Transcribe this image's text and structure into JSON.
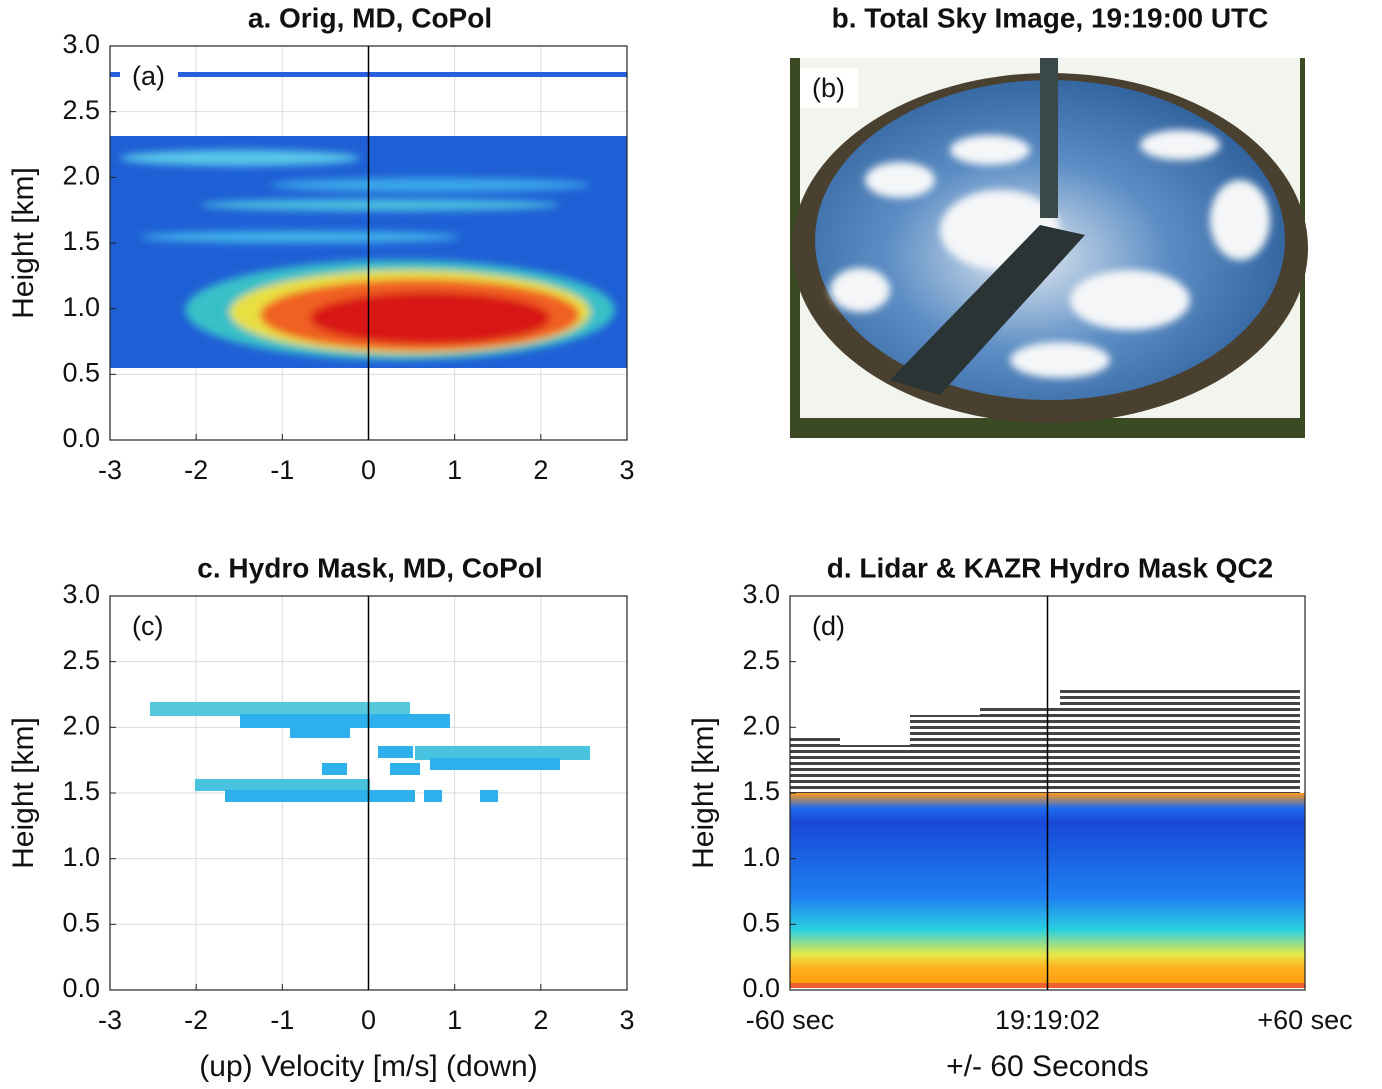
{
  "chart_data": [
    {
      "type": "heatmap",
      "title": "a. Orig, MD, CoPol",
      "annotation": "(a)",
      "ylabel": "Height [km]",
      "xlim": [
        -3,
        3
      ],
      "xticks": [
        -3,
        -2,
        -1,
        0,
        1,
        2,
        3
      ],
      "ylim": [
        0,
        3
      ],
      "yticks": [
        {
          "value": 0,
          "label": "0.0"
        },
        0.5,
        {
          "value": 1,
          "label": "1.0"
        },
        1.5,
        {
          "value": 2,
          "label": "2.0"
        },
        2.5,
        {
          "value": 3,
          "label": "3.0"
        }
      ],
      "grid": true,
      "vline": 0
    },
    {
      "type": "image",
      "title": "b. Total Sky Image, 19:19:00 UTC",
      "annotation": "(b)"
    },
    {
      "type": "heatmap",
      "title": "c. Hydro Mask, MD, CoPol",
      "annotation": "(c)",
      "ylabel": "Height [km]",
      "xlabel": "(up)  Velocity [m/s]  (down)",
      "xlim": [
        -3,
        3
      ],
      "xticks": [
        -3,
        -2,
        -1,
        0,
        1,
        2,
        3
      ],
      "ylim": [
        0,
        3
      ],
      "yticks": [
        {
          "value": 0,
          "label": "0.0"
        },
        0.5,
        {
          "value": 1,
          "label": "1.0"
        },
        1.5,
        {
          "value": 2,
          "label": "2.0"
        },
        2.5,
        {
          "value": 3,
          "label": "3.0"
        }
      ],
      "grid": true,
      "vline": 0
    },
    {
      "type": "heatmap",
      "title": "d. Lidar & KAZR Hydro Mask QC2",
      "annotation": "(d)",
      "ylabel": "Height [km]",
      "xlabel": "+/- 60 Seconds",
      "xlim": [
        -60,
        60
      ],
      "xticks": [
        {
          "value": -60,
          "label": "-60 sec"
        },
        {
          "value": 0,
          "label": "19:19:02"
        },
        {
          "value": 60,
          "label": "+60 sec"
        }
      ],
      "ylim": [
        0,
        3
      ],
      "yticks": [
        {
          "value": 0,
          "label": "0.0"
        },
        0.5,
        {
          "value": 1,
          "label": "1.0"
        },
        1.5,
        {
          "value": 2,
          "label": "2.0"
        },
        2.5,
        {
          "value": 3,
          "label": "3.0"
        }
      ],
      "grid": false,
      "vline": 0
    }
  ]
}
